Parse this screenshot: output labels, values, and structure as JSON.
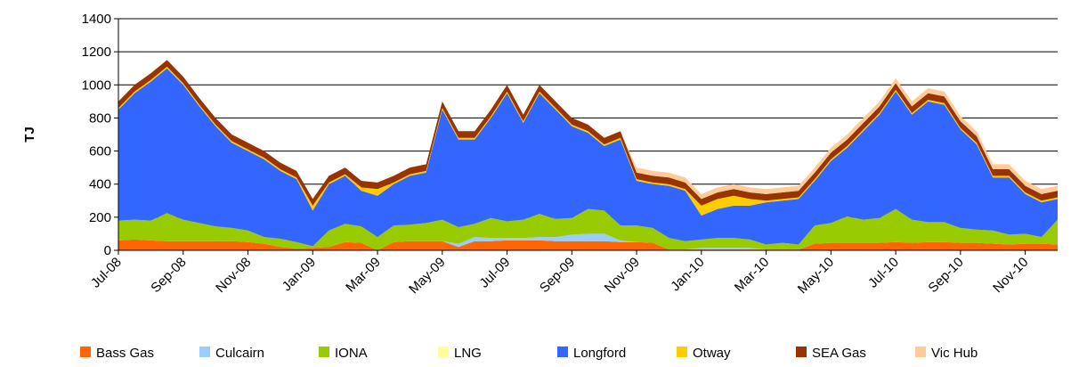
{
  "chart_data": {
    "type": "stacked_area",
    "y_label": "TJ",
    "categories": [
      "Jul-08",
      null,
      null,
      null,
      "Sep-08",
      null,
      null,
      null,
      "Nov-08",
      null,
      null,
      null,
      "Jan-09",
      null,
      null,
      null,
      "Mar-09",
      null,
      null,
      null,
      "May-09",
      null,
      null,
      null,
      "Jul-09",
      null,
      null,
      null,
      "Sep-09",
      null,
      null,
      null,
      "Nov-09",
      null,
      null,
      null,
      "Jan-10",
      null,
      null,
      null,
      "Mar-10",
      null,
      null,
      null,
      "May-10",
      null,
      null,
      null,
      "Jul-10",
      null,
      null,
      null,
      "Sep-10",
      null,
      null,
      null,
      "Nov-10",
      null,
      null
    ],
    "series": [
      {
        "name": "Bass Gas",
        "color": "#ff6600",
        "values": [
          60,
          65,
          60,
          55,
          55,
          55,
          55,
          55,
          50,
          40,
          20,
          10,
          15,
          20,
          50,
          45,
          0,
          50,
          55,
          55,
          55,
          20,
          55,
          55,
          60,
          60,
          60,
          55,
          55,
          55,
          55,
          50,
          50,
          45,
          5,
          5,
          5,
          5,
          5,
          5,
          5,
          5,
          5,
          40,
          45,
          45,
          45,
          45,
          50,
          45,
          50,
          50,
          45,
          45,
          40,
          35,
          40,
          40,
          35
        ]
      },
      {
        "name": "Culcairn",
        "color": "#99ccff",
        "values": [
          0,
          0,
          0,
          0,
          0,
          0,
          0,
          0,
          0,
          0,
          0,
          0,
          0,
          0,
          0,
          0,
          0,
          0,
          0,
          0,
          0,
          20,
          25,
          20,
          15,
          15,
          20,
          25,
          40,
          45,
          45,
          10,
          0,
          0,
          0,
          0,
          10,
          10,
          10,
          10,
          0,
          0,
          0,
          0,
          0,
          0,
          0,
          0,
          0,
          0,
          0,
          0,
          0,
          0,
          0,
          0,
          0,
          0,
          0
        ]
      },
      {
        "name": "IONA",
        "color": "#99cc00",
        "values": [
          120,
          120,
          120,
          170,
          130,
          110,
          90,
          80,
          70,
          40,
          50,
          40,
          10,
          100,
          110,
          100,
          80,
          100,
          100,
          110,
          130,
          100,
          80,
          120,
          100,
          110,
          140,
          110,
          100,
          150,
          140,
          90,
          100,
          90,
          70,
          50,
          50,
          60,
          60,
          50,
          30,
          40,
          30,
          110,
          120,
          160,
          140,
          150,
          200,
          140,
          120,
          120,
          90,
          80,
          80,
          60,
          60,
          40,
          150
        ]
      },
      {
        "name": "LNG",
        "color": "#ffff99",
        "values": [
          0,
          0,
          0,
          0,
          0,
          0,
          0,
          0,
          0,
          0,
          0,
          0,
          0,
          0,
          0,
          0,
          0,
          0,
          0,
          0,
          0,
          0,
          0,
          0,
          0,
          0,
          0,
          0,
          0,
          0,
          0,
          0,
          0,
          0,
          0,
          0,
          0,
          0,
          0,
          0,
          0,
          0,
          0,
          0,
          0,
          0,
          0,
          0,
          0,
          0,
          0,
          0,
          0,
          0,
          0,
          0,
          0,
          0,
          0
        ]
      },
      {
        "name": "Longford",
        "color": "#3366ff",
        "values": [
          670,
          765,
          840,
          875,
          815,
          705,
          605,
          515,
          480,
          470,
          410,
          380,
          215,
          280,
          290,
          215,
          250,
          250,
          295,
          305,
          665,
          530,
          510,
          605,
          775,
          585,
          730,
          660,
          555,
          460,
          390,
          520,
          270,
          265,
          315,
          305,
          145,
          175,
          195,
          205,
          255,
          255,
          275,
          270,
          375,
          415,
          535,
          625,
          710,
          635,
          730,
          710,
          595,
          515,
          320,
          345,
          240,
          210,
          125
        ]
      },
      {
        "name": "Otway",
        "color": "#ffcc00",
        "values": [
          10,
          10,
          10,
          10,
          10,
          10,
          10,
          10,
          10,
          10,
          10,
          10,
          30,
          10,
          10,
          20,
          40,
          10,
          10,
          10,
          10,
          10,
          10,
          10,
          10,
          10,
          10,
          10,
          10,
          10,
          10,
          10,
          10,
          10,
          10,
          10,
          60,
          60,
          60,
          40,
          10,
          10,
          10,
          10,
          10,
          10,
          10,
          10,
          10,
          10,
          10,
          10,
          10,
          10,
          10,
          10,
          10,
          10,
          10
        ]
      },
      {
        "name": "SEA Gas",
        "color": "#993300",
        "values": [
          40,
          40,
          40,
          40,
          40,
          40,
          40,
          40,
          40,
          40,
          40,
          40,
          40,
          40,
          40,
          40,
          40,
          40,
          40,
          40,
          40,
          40,
          40,
          40,
          40,
          40,
          40,
          40,
          40,
          40,
          40,
          40,
          40,
          40,
          40,
          40,
          40,
          40,
          40,
          40,
          40,
          40,
          40,
          40,
          40,
          40,
          40,
          40,
          40,
          40,
          40,
          40,
          40,
          40,
          40,
          40,
          40,
          40,
          40
        ]
      },
      {
        "name": "Vic Hub",
        "color": "#ffcc99",
        "values": [
          0,
          0,
          0,
          0,
          0,
          0,
          0,
          0,
          0,
          0,
          0,
          0,
          0,
          0,
          0,
          0,
          0,
          0,
          0,
          0,
          0,
          0,
          0,
          0,
          0,
          0,
          0,
          0,
          0,
          0,
          0,
          0,
          30,
          30,
          30,
          30,
          30,
          30,
          30,
          30,
          30,
          30,
          30,
          30,
          30,
          30,
          30,
          30,
          30,
          30,
          30,
          30,
          30,
          30,
          30,
          30,
          30,
          30,
          30
        ]
      }
    ],
    "ylim": [
      0,
      1400
    ],
    "yticks": [
      0,
      200,
      400,
      600,
      800,
      1000,
      1200,
      1400
    ],
    "grid": true,
    "legend": "bottom"
  }
}
